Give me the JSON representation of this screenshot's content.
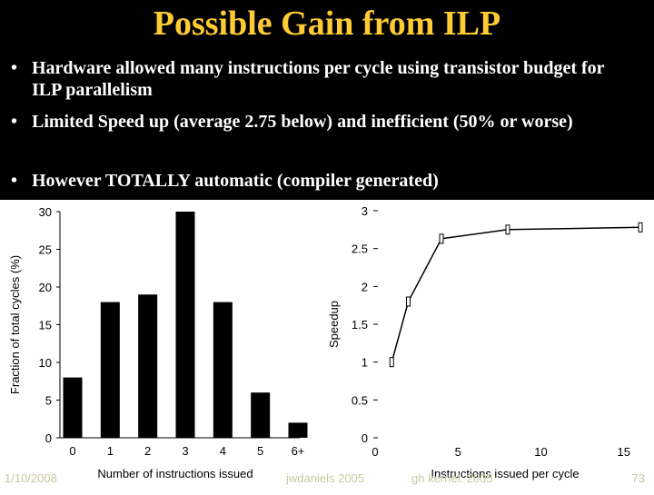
{
  "slide": {
    "title": "Possible Gain from ILP",
    "bullets": [
      "Hardware allowed many instructions per cycle using transistor budget for ILP parallelism",
      "Limited Speed up (average 2.75 below) and inefficient (50% or worse)",
      "However TOTALLY automatic (compiler generated)"
    ],
    "bullet_glyph": "•",
    "footer": {
      "date": "1/10/2008",
      "author": "jwdaniels 2005",
      "course": "gh kernel. 2005",
      "page": "73"
    }
  },
  "colors": {
    "background_top": "#000000",
    "title": "#ffcc33",
    "bullet_text": "#ffffff",
    "chart_ink": "#000000"
  },
  "chart_data": [
    {
      "type": "bar",
      "categories": [
        "0",
        "1",
        "2",
        "3",
        "4",
        "5",
        "6+"
      ],
      "values": [
        8,
        18,
        19,
        30,
        18,
        6,
        2
      ],
      "xlabel": "Number of instructions issued",
      "ylabel": "Fraction of total cycles (%)",
      "ylim": [
        0,
        30
      ],
      "yticks": [
        "0",
        "5",
        "10",
        "15",
        "20",
        "25",
        "30"
      ],
      "grid": false
    },
    {
      "type": "line",
      "x": [
        1,
        2,
        4,
        8,
        16
      ],
      "y": [
        1.0,
        1.8,
        2.63,
        2.75,
        2.78
      ],
      "xlabel": "Instructions issued per cycle",
      "ylabel": "Speedup",
      "xlim": [
        0,
        16
      ],
      "ylim": [
        0,
        3
      ],
      "xticks": [
        "0",
        "5",
        "10",
        "15"
      ],
      "yticks": [
        "0",
        "0.5",
        "1",
        "1.5",
        "2",
        "2.5",
        "3"
      ],
      "grid": false
    }
  ]
}
